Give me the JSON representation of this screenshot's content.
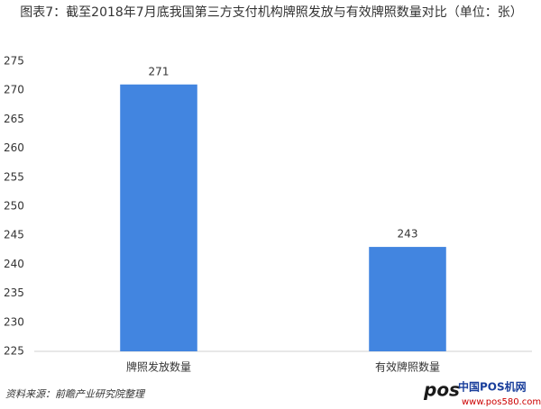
{
  "chart_data": {
    "type": "bar",
    "title": "图表7：截至2018年7月底我国第三方支付机构牌照发放与有效牌照数量对比（单位：张）",
    "categories": [
      "牌照发放数量",
      "有效牌照数量"
    ],
    "values": [
      271,
      243
    ],
    "color": "#4285e0",
    "ylim": [
      225,
      275
    ],
    "yticks": [
      225,
      230,
      235,
      240,
      245,
      250,
      255,
      260,
      265,
      270,
      275
    ],
    "grid": false,
    "source": "资料来源：前瞻产业研究院整理"
  },
  "logo": {
    "mark": "pos",
    "name": "中国POS机网",
    "url": "www.pos580.com"
  }
}
